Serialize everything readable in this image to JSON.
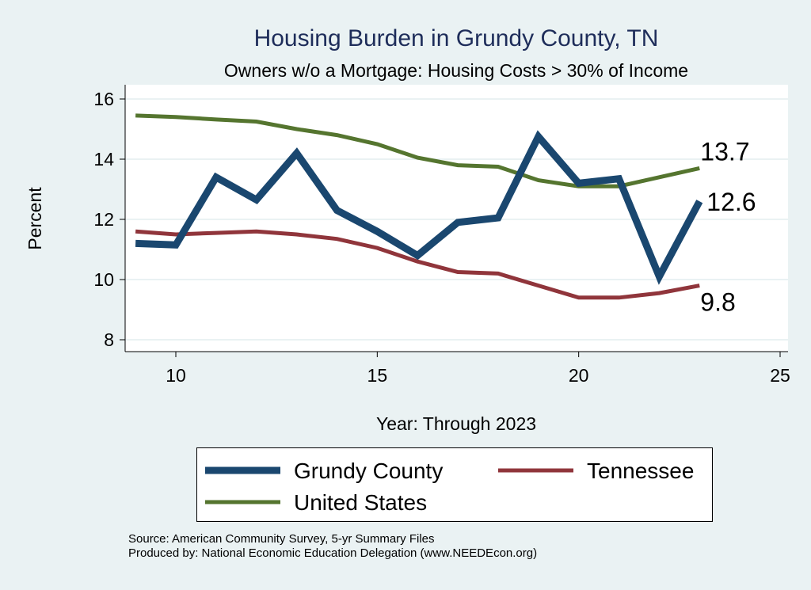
{
  "chart_data": {
    "type": "line",
    "title": "Housing Burden in Grundy County, TN",
    "subtitle": "Owners w/o a Mortgage: Housing Costs > 30% of Income",
    "xlabel": "Year: Through 2023",
    "ylabel": "Percent",
    "xlim": [
      8.7,
      25.3
    ],
    "ylim": [
      7.6,
      16.5
    ],
    "xticks": [
      10,
      15,
      20,
      25
    ],
    "yticks": [
      8,
      10,
      12,
      14,
      16
    ],
    "grid": true,
    "legend_position": "bottom",
    "x": [
      9,
      10,
      11,
      12,
      13,
      14,
      15,
      16,
      17,
      18,
      19,
      20,
      21,
      22,
      23
    ],
    "series": [
      {
        "name": "Grundy County",
        "color": "#1a476f",
        "width": 9,
        "end_label": "12.6",
        "values": [
          11.2,
          11.15,
          13.4,
          12.65,
          14.2,
          12.3,
          11.6,
          10.8,
          11.9,
          12.05,
          14.75,
          13.2,
          13.35,
          10.1,
          12.6
        ]
      },
      {
        "name": "Tennessee",
        "color": "#90353b",
        "width": 5,
        "end_label": "9.8",
        "values": [
          11.6,
          11.5,
          11.55,
          11.6,
          11.5,
          11.35,
          11.05,
          10.6,
          10.25,
          10.2,
          9.8,
          9.4,
          9.4,
          9.55,
          9.8
        ]
      },
      {
        "name": "United States",
        "color": "#55752f",
        "width": 5,
        "end_label": "13.7",
        "values": [
          15.45,
          15.4,
          15.32,
          15.25,
          15.0,
          14.8,
          14.5,
          14.05,
          13.8,
          13.75,
          13.3,
          13.1,
          13.1,
          13.4,
          13.7
        ]
      }
    ]
  },
  "source": {
    "line1": "Source: American Community Survey, 5-yr Summary Files",
    "line2": "Produced by: National Economic Education Delegation (www.NEEDEcon.org)"
  }
}
